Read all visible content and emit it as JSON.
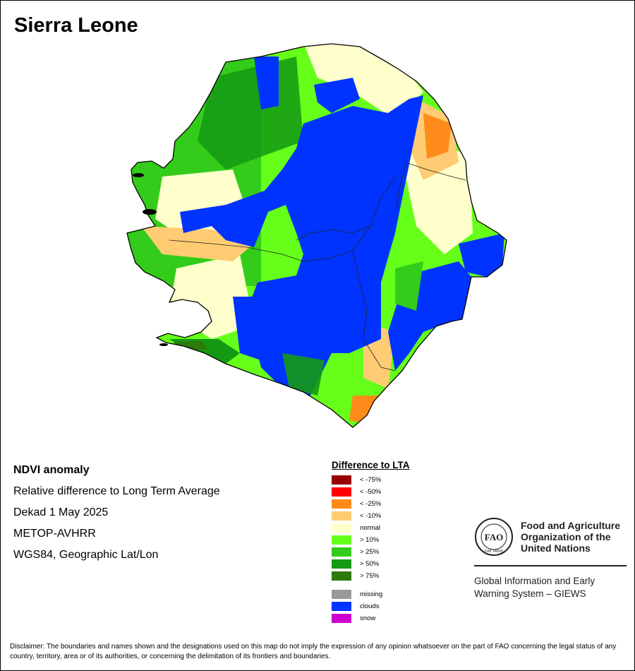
{
  "title": "Sierra Leone",
  "info": {
    "line1": "NDVI anomaly",
    "line2": "Relative difference to Long Term Average",
    "line3": "Dekad 1 May 2025",
    "line4": "METOP-AVHRR",
    "line5": "WGS84, Geographic Lat/Lon"
  },
  "legend": {
    "title": "Difference to LTA",
    "classes": [
      {
        "label": "< -75%",
        "color": "#990000"
      },
      {
        "label": "< -50%",
        "color": "#ff0000"
      },
      {
        "label": "< -25%",
        "color": "#ff8c1a"
      },
      {
        "label": "< -10%",
        "color": "#ffcc73"
      },
      {
        "label": "normal",
        "color": "#ffffcc"
      },
      {
        "label": "> 10%",
        "color": "#66ff1a"
      },
      {
        "label": "> 25%",
        "color": "#33cc1a"
      },
      {
        "label": "> 50%",
        "color": "#149914"
      },
      {
        "label": "> 75%",
        "color": "#2e7a0a"
      }
    ],
    "extra": [
      {
        "label": "missing",
        "color": "#999999"
      },
      {
        "label": "clouds",
        "color": "#0033ff"
      },
      {
        "label": "snow",
        "color": "#cc00cc"
      }
    ]
  },
  "fao": {
    "name_line1": "Food and Agriculture",
    "name_line2": "Organization of the",
    "name_line3": "United Nations",
    "logo_text": "FAO",
    "logo_motto": "FIAT PANIS",
    "giews_line1": "Global Information and Early",
    "giews_line2": "Warning System – GIEWS"
  },
  "disclaimer": "Disclaimer: The boundaries and names shown and the designations used on this map do not imply the expression of any opinion whatsoever on the part of FAO concerning the legal status of any country, territory, area or of its authorities, or concerning the delimitation of its frontiers and boundaries."
}
